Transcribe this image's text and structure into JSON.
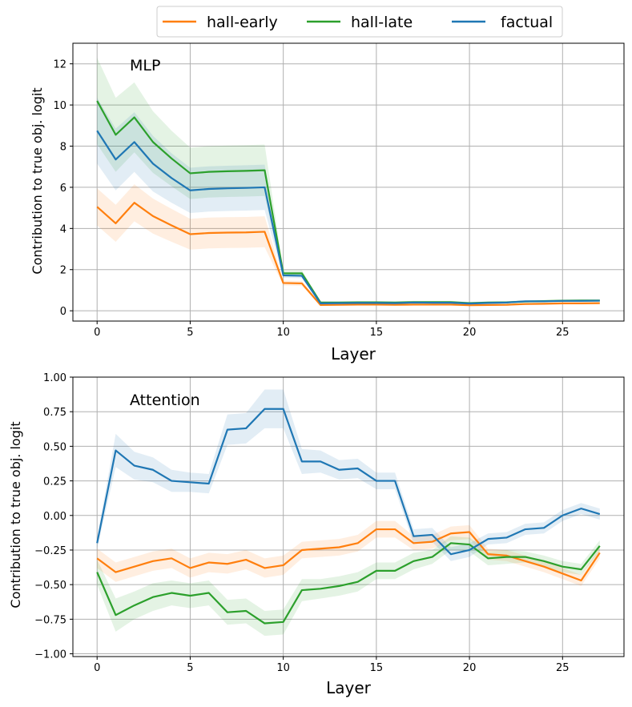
{
  "chart_data": [
    {
      "type": "line",
      "title": "MLP",
      "xlabel": "Layer",
      "ylabel": "Contribution to true obj. logit",
      "xlim": [
        -1.3,
        28.3
      ],
      "ylim": [
        -0.5,
        13.0
      ],
      "xticks": [
        0,
        5,
        10,
        15,
        20,
        25
      ],
      "yticks": [
        0,
        2,
        4,
        6,
        8,
        10,
        12
      ],
      "grid": true,
      "x": [
        0,
        1,
        2,
        3,
        4,
        5,
        6,
        7,
        8,
        9,
        10,
        11,
        12,
        13,
        14,
        15,
        16,
        17,
        18,
        19,
        20,
        21,
        22,
        23,
        24,
        25,
        26,
        27
      ],
      "series": [
        {
          "name": "hall-early",
          "color": "#ff7f0e",
          "values": [
            5.05,
            4.25,
            5.25,
            4.6,
            4.15,
            3.72,
            3.78,
            3.8,
            3.81,
            3.84,
            1.35,
            1.33,
            0.28,
            0.29,
            0.3,
            0.3,
            0.29,
            0.3,
            0.3,
            0.3,
            0.27,
            0.28,
            0.29,
            0.33,
            0.34,
            0.36,
            0.36,
            0.37
          ],
          "band": [
            0.9,
            0.9,
            0.9,
            0.85,
            0.8,
            0.75,
            0.75,
            0.75,
            0.75,
            0.75,
            0.12,
            0.12,
            0.05,
            0.05,
            0.05,
            0.05,
            0.05,
            0.05,
            0.05,
            0.05,
            0.05,
            0.05,
            0.05,
            0.05,
            0.05,
            0.05,
            0.05,
            0.05
          ]
        },
        {
          "name": "hall-late",
          "color": "#2ca02c",
          "values": [
            10.2,
            8.55,
            9.4,
            8.2,
            7.4,
            6.68,
            6.75,
            6.78,
            6.8,
            6.83,
            1.82,
            1.82,
            0.4,
            0.4,
            0.41,
            0.41,
            0.4,
            0.42,
            0.42,
            0.42,
            0.37,
            0.4,
            0.41,
            0.45,
            0.47,
            0.49,
            0.5,
            0.5
          ],
          "band": [
            2.1,
            1.8,
            1.7,
            1.5,
            1.35,
            1.25,
            1.25,
            1.25,
            1.25,
            1.25,
            0.15,
            0.15,
            0.06,
            0.06,
            0.06,
            0.06,
            0.06,
            0.06,
            0.06,
            0.06,
            0.06,
            0.06,
            0.06,
            0.06,
            0.06,
            0.06,
            0.06,
            0.06
          ]
        },
        {
          "name": "factual",
          "color": "#1f77b4",
          "values": [
            8.75,
            7.35,
            8.2,
            7.15,
            6.45,
            5.85,
            5.92,
            5.95,
            5.97,
            6.0,
            1.72,
            1.7,
            0.36,
            0.37,
            0.38,
            0.38,
            0.37,
            0.4,
            0.39,
            0.39,
            0.35,
            0.38,
            0.4,
            0.46,
            0.46,
            0.48,
            0.48,
            0.49
          ],
          "band": [
            1.6,
            1.5,
            1.45,
            1.35,
            1.2,
            1.1,
            1.1,
            1.1,
            1.1,
            1.1,
            0.12,
            0.12,
            0.05,
            0.05,
            0.05,
            0.05,
            0.05,
            0.05,
            0.05,
            0.05,
            0.05,
            0.05,
            0.05,
            0.05,
            0.05,
            0.05,
            0.05,
            0.05
          ]
        }
      ]
    },
    {
      "type": "line",
      "title": "Attention",
      "xlabel": "Layer",
      "ylabel": "Contribution to true obj. logit",
      "xlim": [
        -1.3,
        28.3
      ],
      "ylim": [
        -1.02,
        1.0
      ],
      "xticks": [
        0,
        5,
        10,
        15,
        20,
        25
      ],
      "yticks": [
        -1.0,
        -0.75,
        -0.5,
        -0.25,
        0.0,
        0.25,
        0.5,
        0.75,
        1.0
      ],
      "ytick_labels": [
        "−1.00",
        "−0.75",
        "−0.50",
        "−0.25",
        "0.00",
        "0.25",
        "0.50",
        "0.75",
        "1.00"
      ],
      "grid": true,
      "x": [
        0,
        1,
        2,
        3,
        4,
        5,
        6,
        7,
        8,
        9,
        10,
        11,
        12,
        13,
        14,
        15,
        16,
        17,
        18,
        19,
        20,
        21,
        22,
        23,
        24,
        25,
        26,
        27
      ],
      "series": [
        {
          "name": "hall-early",
          "color": "#ff7f0e",
          "values": [
            -0.31,
            -0.41,
            -0.37,
            -0.33,
            -0.31,
            -0.38,
            -0.34,
            -0.35,
            -0.32,
            -0.38,
            -0.36,
            -0.25,
            -0.24,
            -0.23,
            -0.2,
            -0.1,
            -0.1,
            -0.2,
            -0.19,
            -0.13,
            -0.12,
            -0.28,
            -0.29,
            -0.33,
            -0.37,
            -0.42,
            -0.47,
            -0.27
          ],
          "band": [
            0.07,
            0.07,
            0.07,
            0.07,
            0.07,
            0.07,
            0.07,
            0.07,
            0.07,
            0.07,
            0.07,
            0.06,
            0.06,
            0.06,
            0.06,
            0.06,
            0.06,
            0.05,
            0.05,
            0.05,
            0.05,
            0.04,
            0.04,
            0.04,
            0.04,
            0.04,
            0.04,
            0.04
          ]
        },
        {
          "name": "hall-late",
          "color": "#2ca02c",
          "values": [
            -0.41,
            -0.72,
            -0.65,
            -0.59,
            -0.56,
            -0.58,
            -0.56,
            -0.7,
            -0.69,
            -0.78,
            -0.77,
            -0.54,
            -0.53,
            -0.51,
            -0.48,
            -0.4,
            -0.4,
            -0.33,
            -0.3,
            -0.2,
            -0.21,
            -0.31,
            -0.3,
            -0.3,
            -0.33,
            -0.37,
            -0.39,
            -0.22
          ],
          "band": [
            0.09,
            0.12,
            0.1,
            0.1,
            0.09,
            0.09,
            0.09,
            0.09,
            0.09,
            0.09,
            0.09,
            0.08,
            0.07,
            0.07,
            0.07,
            0.06,
            0.06,
            0.06,
            0.05,
            0.05,
            0.05,
            0.05,
            0.05,
            0.04,
            0.04,
            0.04,
            0.04,
            0.04
          ]
        },
        {
          "name": "factual",
          "color": "#1f77b4",
          "values": [
            -0.2,
            0.47,
            0.36,
            0.33,
            0.25,
            0.24,
            0.23,
            0.62,
            0.63,
            0.77,
            0.77,
            0.39,
            0.39,
            0.33,
            0.34,
            0.25,
            0.25,
            -0.15,
            -0.14,
            -0.28,
            -0.25,
            -0.17,
            -0.16,
            -0.1,
            -0.09,
            0.0,
            0.05,
            0.01
          ],
          "band": [
            0.04,
            0.12,
            0.1,
            0.09,
            0.08,
            0.07,
            0.07,
            0.11,
            0.11,
            0.14,
            0.14,
            0.09,
            0.08,
            0.07,
            0.07,
            0.06,
            0.06,
            0.05,
            0.05,
            0.05,
            0.05,
            0.04,
            0.04,
            0.04,
            0.04,
            0.04,
            0.04,
            0.04
          ]
        }
      ]
    }
  ],
  "legend": {
    "placement": "top-center",
    "entries": [
      {
        "label": "hall-early",
        "color": "#ff7f0e"
      },
      {
        "label": "hall-late",
        "color": "#2ca02c"
      },
      {
        "label": "factual",
        "color": "#1f77b4"
      }
    ]
  }
}
